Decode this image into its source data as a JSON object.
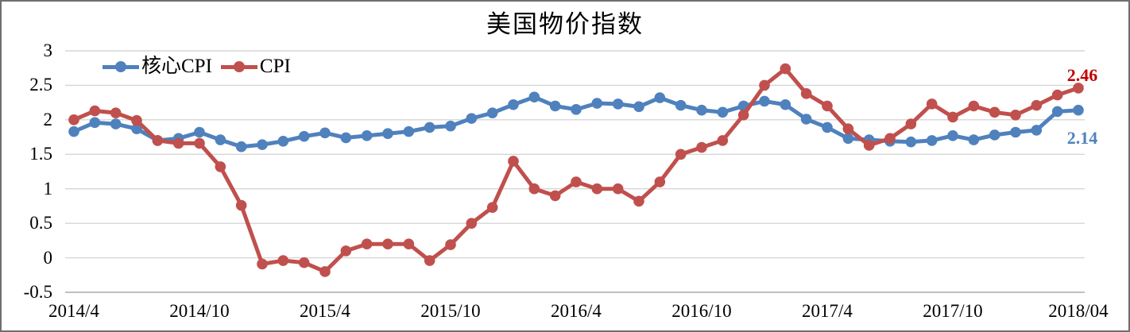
{
  "window": {
    "background": "#FFFFFF",
    "border_color": "#6F6F6F"
  },
  "chart_data": {
    "type": "line",
    "title": "美国物价指数",
    "xlabel": "",
    "ylabel": "",
    "ylim": [
      -0.5,
      3
    ],
    "grid": "horizontal",
    "grid_color": "#D6D6D6",
    "axis_line_color": "#ABABAB",
    "legend_position": "top-left-inside",
    "y_ticks": [
      3,
      2.5,
      2,
      1.5,
      1,
      0.5,
      0,
      -0.5
    ],
    "x_tick_labels": [
      "2014/4",
      "2014/10",
      "2015/4",
      "2015/10",
      "2016/4",
      "2016/10",
      "2017/4",
      "2017/10",
      "2018/04"
    ],
    "x_tick_indices": [
      0,
      6,
      12,
      18,
      24,
      30,
      36,
      42,
      48
    ],
    "categories": [
      "2014/4",
      "2014/5",
      "2014/6",
      "2014/7",
      "2014/8",
      "2014/9",
      "2014/10",
      "2014/11",
      "2014/12",
      "2015/1",
      "2015/2",
      "2015/3",
      "2015/4",
      "2015/5",
      "2015/6",
      "2015/7",
      "2015/8",
      "2015/9",
      "2015/10",
      "2015/11",
      "2015/12",
      "2016/1",
      "2016/2",
      "2016/3",
      "2016/4",
      "2016/5",
      "2016/6",
      "2016/7",
      "2016/8",
      "2016/9",
      "2016/10",
      "2016/11",
      "2016/12",
      "2017/1",
      "2017/2",
      "2017/3",
      "2017/4",
      "2017/5",
      "2017/6",
      "2017/7",
      "2017/8",
      "2017/9",
      "2017/10",
      "2017/11",
      "2017/12",
      "2018/1",
      "2018/2",
      "2018/3",
      "2018/4"
    ],
    "series": [
      {
        "name": "核心CPI",
        "color": "#4F81BD",
        "end_label": {
          "text": "2.14",
          "color": "#4F81BD"
        },
        "values": [
          1.83,
          1.96,
          1.94,
          1.87,
          1.7,
          1.73,
          1.82,
          1.71,
          1.61,
          1.64,
          1.69,
          1.76,
          1.81,
          1.74,
          1.77,
          1.8,
          1.83,
          1.89,
          1.91,
          2.02,
          2.1,
          2.22,
          2.33,
          2.2,
          2.15,
          2.24,
          2.23,
          2.19,
          2.32,
          2.21,
          2.14,
          2.11,
          2.2,
          2.27,
          2.22,
          2.01,
          1.89,
          1.73,
          1.71,
          1.69,
          1.68,
          1.7,
          1.77,
          1.71,
          1.78,
          1.82,
          1.85,
          2.12,
          2.14
        ]
      },
      {
        "name": "CPI",
        "color": "#C0504D",
        "end_label": {
          "text": "2.46",
          "color": "#C00000"
        },
        "values": [
          2.0,
          2.13,
          2.1,
          1.99,
          1.7,
          1.66,
          1.66,
          1.32,
          0.76,
          -0.09,
          -0.04,
          -0.07,
          -0.2,
          0.1,
          0.2,
          0.2,
          0.2,
          -0.04,
          0.19,
          0.5,
          0.73,
          1.4,
          1.0,
          0.9,
          1.1,
          1.0,
          1.0,
          0.82,
          1.1,
          1.5,
          1.6,
          1.7,
          2.07,
          2.5,
          2.74,
          2.38,
          2.2,
          1.87,
          1.63,
          1.73,
          1.94,
          2.23,
          2.04,
          2.2,
          2.11,
          2.07,
          2.21,
          2.36,
          2.46
        ]
      }
    ]
  }
}
